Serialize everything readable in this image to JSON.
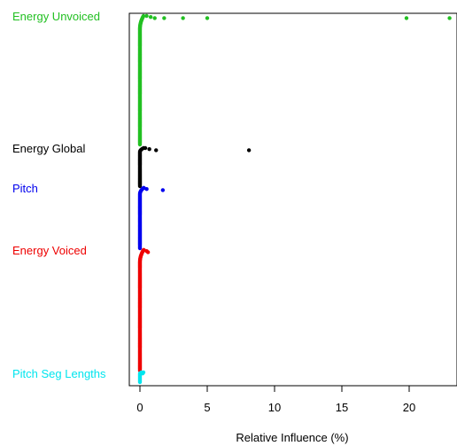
{
  "chart_data": {
    "type": "scatter",
    "xlabel": "Relative Influence (%)",
    "ylabel": "",
    "xlim": [
      -1,
      23.5
    ],
    "xticks": [
      0,
      5,
      10,
      15,
      20
    ],
    "x_tick_labels": [
      "0",
      "5",
      "10",
      "15",
      "20"
    ],
    "grid": false,
    "legend": "none",
    "series": [
      {
        "name": "Energy Unvoiced",
        "color": "#22c022",
        "count": 150,
        "tail_values": [
          0.5,
          0.8,
          1.1,
          1.8,
          3.2,
          5.0,
          19.8,
          23.0
        ]
      },
      {
        "name": "Energy Global",
        "color": "#000000",
        "count": 45,
        "tail_values": [
          0.4,
          0.7,
          1.2,
          8.1
        ]
      },
      {
        "name": "Pitch",
        "color": "#0000ee",
        "count": 70,
        "tail_values": [
          0.3,
          0.5,
          1.7
        ]
      },
      {
        "name": "Energy Voiced",
        "color": "#ee0000",
        "count": 140,
        "tail_values": [
          0.3,
          0.5,
          0.6
        ]
      },
      {
        "name": "Pitch Seg Lengths",
        "color": "#00e5ee",
        "count": 12,
        "tail_values": [
          0.1,
          0.2
        ]
      }
    ]
  }
}
